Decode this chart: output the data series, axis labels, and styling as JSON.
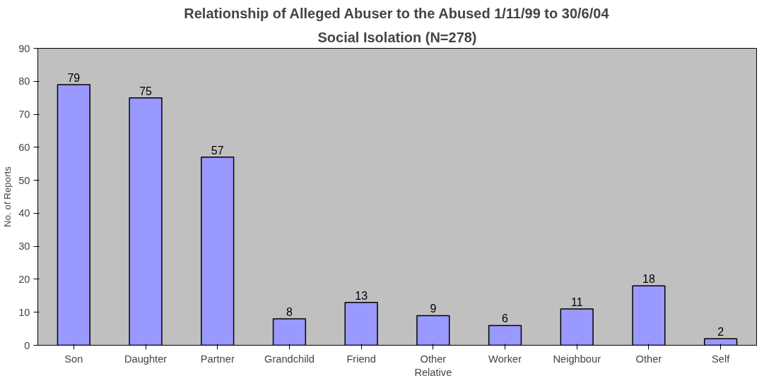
{
  "chart_data": {
    "type": "bar",
    "title": "Relationship of Alleged Abuser to the Abused 1/11/99 to 30/6/04",
    "subtitle": "Social Isolation (N=278)",
    "ylabel": "No. of Reports",
    "categories": [
      "Son",
      "Daughter",
      "Partner",
      "Grandchild",
      "Friend",
      "Other Relative",
      "Worker",
      "Neighbour",
      "Other",
      "Self"
    ],
    "values": [
      79,
      75,
      57,
      8,
      13,
      9,
      6,
      11,
      18,
      2
    ],
    "color": "#9999ff",
    "ylim": [
      0,
      90
    ],
    "yticks": [
      0,
      10,
      20,
      30,
      40,
      50,
      60,
      70,
      80,
      90
    ],
    "data_labels": true,
    "grid": false
  }
}
